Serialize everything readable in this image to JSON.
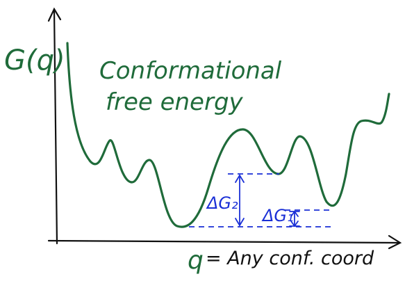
{
  "colors": {
    "curve": "#1f6b3a",
    "axis": "#111111",
    "annotation": "#1a2fd6",
    "background": "#ffffff"
  },
  "labels": {
    "y_axis": "G(q)",
    "title_line1": "Conformational",
    "title_line2": "free energy",
    "x_axis_q": "q",
    "x_axis_rest": "= Any conf. coord",
    "delta_g2": "ΔG₂",
    "delta_g1": "ΔG₁"
  }
}
